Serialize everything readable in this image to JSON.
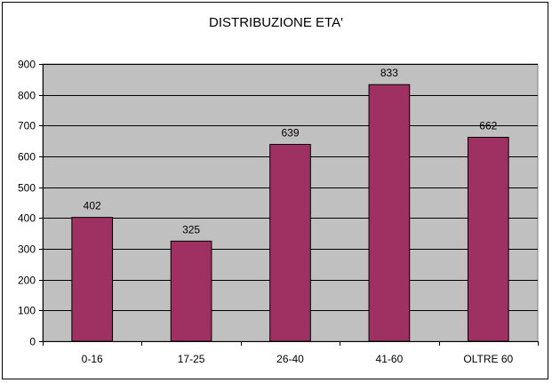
{
  "chart_data": {
    "type": "bar",
    "title": "DISTRIBUZIONE ETA'",
    "categories": [
      "0-16",
      "17-25",
      "26-40",
      "41-60",
      "OLTRE 60"
    ],
    "values": [
      402,
      325,
      639,
      833,
      662
    ],
    "data_labels": [
      "402",
      "325",
      "639",
      "833",
      "662"
    ],
    "ylim": [
      0,
      900
    ],
    "yticks": [
      0,
      100,
      200,
      300,
      400,
      500,
      600,
      700,
      800,
      900
    ],
    "grid": true,
    "legend": "none",
    "colors": {
      "bar": "#9E3062",
      "plot_background": "#C0C0C0",
      "gridline": "#000000"
    }
  }
}
